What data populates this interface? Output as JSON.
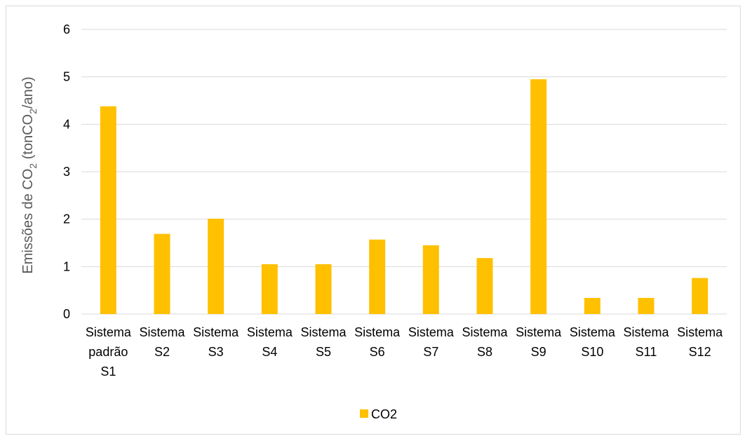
{
  "chart_data": {
    "type": "bar",
    "categories": [
      [
        "Sistema",
        "padrão",
        "S1"
      ],
      [
        "Sistema",
        "S2"
      ],
      [
        "Sistema",
        "S3"
      ],
      [
        "Sistema",
        "S4"
      ],
      [
        "Sistema",
        "S5"
      ],
      [
        "Sistema",
        "S6"
      ],
      [
        "Sistema",
        "S7"
      ],
      [
        "Sistema",
        "S8"
      ],
      [
        "Sistema",
        "S9"
      ],
      [
        "Sistema",
        "S10"
      ],
      [
        "Sistema",
        "S11"
      ],
      [
        "Sistema",
        "S12"
      ]
    ],
    "series": [
      {
        "name": "CO2",
        "color": "#FFC000",
        "values": [
          4.38,
          1.69,
          2.01,
          1.05,
          1.05,
          1.57,
          1.45,
          1.18,
          4.95,
          0.34,
          0.34,
          0.76
        ]
      }
    ],
    "yticks": [
      "0",
      "1",
      "2",
      "3",
      "4",
      "5",
      "6"
    ],
    "ylim": [
      0,
      6
    ],
    "ylabel": {
      "prefix": "Emissões de CO",
      "sub1": "2",
      "mid": " (tonCO",
      "sub2": "2",
      "suffix": "/ano)"
    },
    "grid": true,
    "legend_position": "bottom"
  }
}
